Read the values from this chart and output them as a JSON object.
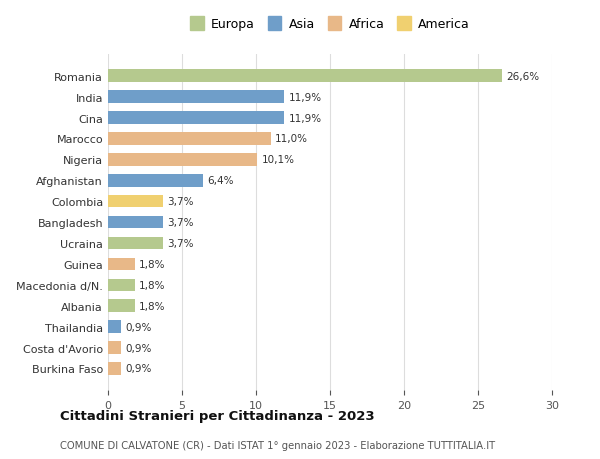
{
  "countries": [
    "Romania",
    "India",
    "Cina",
    "Marocco",
    "Nigeria",
    "Afghanistan",
    "Colombia",
    "Bangladesh",
    "Ucraina",
    "Guinea",
    "Macedonia d/N.",
    "Albania",
    "Thailandia",
    "Costa d'Avorio",
    "Burkina Faso"
  ],
  "values": [
    26.6,
    11.9,
    11.9,
    11.0,
    10.1,
    6.4,
    3.7,
    3.7,
    3.7,
    1.8,
    1.8,
    1.8,
    0.9,
    0.9,
    0.9
  ],
  "labels": [
    "26,6%",
    "11,9%",
    "11,9%",
    "11,0%",
    "10,1%",
    "6,4%",
    "3,7%",
    "3,7%",
    "3,7%",
    "1,8%",
    "1,8%",
    "1,8%",
    "0,9%",
    "0,9%",
    "0,9%"
  ],
  "continents": [
    "Europa",
    "Asia",
    "Asia",
    "Africa",
    "Africa",
    "Asia",
    "America",
    "Asia",
    "Europa",
    "Africa",
    "Europa",
    "Europa",
    "Asia",
    "Africa",
    "Africa"
  ],
  "colors": {
    "Europa": "#b5c98e",
    "Asia": "#6f9ec9",
    "Africa": "#e8b888",
    "America": "#f0d070"
  },
  "legend_order": [
    "Europa",
    "Asia",
    "Africa",
    "America"
  ],
  "title": "Cittadini Stranieri per Cittadinanza - 2023",
  "subtitle": "COMUNE DI CALVATONE (CR) - Dati ISTAT 1° gennaio 2023 - Elaborazione TUTTITALIA.IT",
  "xlim": [
    0,
    30
  ],
  "xticks": [
    0,
    5,
    10,
    15,
    20,
    25,
    30
  ],
  "background_color": "#ffffff",
  "grid_color": "#dddddd",
  "bar_height": 0.6
}
